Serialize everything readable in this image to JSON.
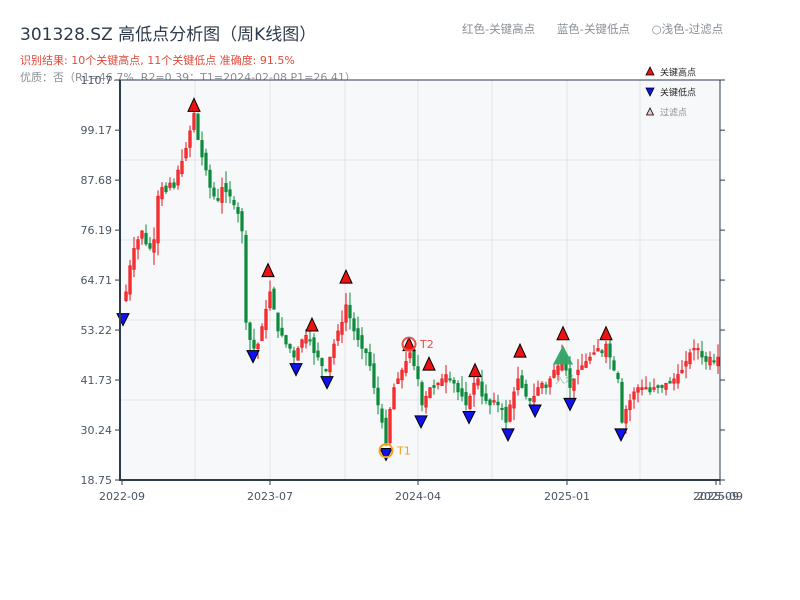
{
  "header": {
    "title": "301328.SZ 高低点分析图（周K线图）",
    "result_line": "识别结果: 10个关键高点, 11个关键低点  准确度: 91.5%",
    "quality_line": "优质：否（R1=46.7%, R2=0.39；T1=2024-02-08 P1=26.41）"
  },
  "top_legend": {
    "red": "红色-关键高点",
    "blue": "蓝色-关键低点",
    "filtered": "○浅色-过滤点"
  },
  "colors": {
    "up": "#e3141b",
    "down": "#0a8a3a",
    "high_marker": "#ee1111",
    "low_marker": "#1111ee",
    "t1": "#f5a21b",
    "t2": "#e8504a",
    "entry": "#2fa86a",
    "axis": "#2d3a4a",
    "grid": "#e1e4e8",
    "plot_bg": "#f6f8fa"
  },
  "chart_data": {
    "type": "candlestick",
    "title": "301328.SZ 高低点分析图（周K线图）",
    "xlabel": "",
    "ylabel": "",
    "ylim": [
      18.75,
      110.7
    ],
    "yticks": [
      18.75,
      30.24,
      41.73,
      53.22,
      64.71,
      76.19,
      87.68,
      99.17,
      110.7
    ],
    "ytick_labels": [
      "18.75",
      "30.24",
      "41.73",
      "53.22",
      "64.71",
      "76.19",
      "87.68",
      "99.17",
      "110.7"
    ],
    "xticks": [
      {
        "label": "2022-09",
        "x": 122
      },
      {
        "label": "2023-07",
        "x": 270
      },
      {
        "label": "2024-04",
        "x": 418
      },
      {
        "label": "2025-01",
        "x": 567
      },
      {
        "label": "2025-09",
        "x": 716
      },
      {
        "label": "2025-09",
        "x": 720
      }
    ],
    "vgrid_x": [
      195,
      270,
      345,
      418,
      492,
      567,
      640
    ],
    "hgrid_values": [
      41.73,
      87.68
    ],
    "legend": [
      {
        "label": "关键高点",
        "marker": "triangle-up",
        "color": "#ee1111"
      },
      {
        "label": "关键低点",
        "marker": "triangle-down",
        "color": "#1111ee"
      },
      {
        "label": "过滤点",
        "marker": "triangle-up-hollow",
        "color": "#f4c6c6"
      }
    ],
    "close_path": [
      [
        122,
        60
      ],
      [
        126,
        62
      ],
      [
        130,
        68
      ],
      [
        134,
        72
      ],
      [
        138,
        74
      ],
      [
        142,
        76
      ],
      [
        146,
        73
      ],
      [
        150,
        72
      ],
      [
        154,
        74
      ],
      [
        158,
        84
      ],
      [
        162,
        86
      ],
      [
        166,
        85
      ],
      [
        170,
        87
      ],
      [
        174,
        86
      ],
      [
        178,
        90
      ],
      [
        182,
        92
      ],
      [
        186,
        95
      ],
      [
        190,
        99
      ],
      [
        194,
        103
      ],
      [
        198,
        97
      ],
      [
        202,
        93
      ],
      [
        206,
        90
      ],
      [
        210,
        86
      ],
      [
        214,
        84
      ],
      [
        218,
        83
      ],
      [
        222,
        86
      ],
      [
        226,
        85
      ],
      [
        230,
        84
      ],
      [
        234,
        82
      ],
      [
        238,
        80
      ],
      [
        242,
        76
      ],
      [
        246,
        55
      ],
      [
        250,
        51
      ],
      [
        254,
        49
      ],
      [
        258,
        50
      ],
      [
        262,
        54
      ],
      [
        266,
        58
      ],
      [
        270,
        62
      ],
      [
        274,
        58
      ],
      [
        278,
        53
      ],
      [
        282,
        52
      ],
      [
        286,
        50
      ],
      [
        290,
        49
      ],
      [
        294,
        47
      ],
      [
        298,
        49
      ],
      [
        302,
        51
      ],
      [
        306,
        52
      ],
      [
        310,
        51
      ],
      [
        314,
        48
      ],
      [
        318,
        47
      ],
      [
        322,
        45
      ],
      [
        326,
        44
      ],
      [
        330,
        47
      ],
      [
        334,
        50
      ],
      [
        338,
        53
      ],
      [
        342,
        55
      ],
      [
        346,
        59
      ],
      [
        350,
        56
      ],
      [
        354,
        53
      ],
      [
        358,
        51
      ],
      [
        362,
        49
      ],
      [
        366,
        48
      ],
      [
        370,
        45
      ],
      [
        374,
        40
      ],
      [
        378,
        36
      ],
      [
        382,
        32
      ],
      [
        386,
        27
      ],
      [
        390,
        35
      ],
      [
        394,
        40
      ],
      [
        398,
        42
      ],
      [
        402,
        44
      ],
      [
        406,
        46
      ],
      [
        410,
        48
      ],
      [
        414,
        45
      ],
      [
        418,
        42
      ],
      [
        422,
        36
      ],
      [
        426,
        38
      ],
      [
        430,
        40
      ],
      [
        434,
        40
      ],
      [
        438,
        41
      ],
      [
        442,
        42
      ],
      [
        446,
        43
      ],
      [
        450,
        42
      ],
      [
        454,
        41
      ],
      [
        458,
        39
      ],
      [
        462,
        38
      ],
      [
        466,
        36
      ],
      [
        470,
        38
      ],
      [
        474,
        41
      ],
      [
        478,
        42
      ],
      [
        482,
        38
      ],
      [
        486,
        37
      ],
      [
        490,
        36
      ],
      [
        494,
        37
      ],
      [
        498,
        36
      ],
      [
        502,
        35
      ],
      [
        506,
        32
      ],
      [
        510,
        36
      ],
      [
        514,
        39
      ],
      [
        518,
        42
      ],
      [
        522,
        40
      ],
      [
        526,
        38
      ],
      [
        530,
        37
      ],
      [
        534,
        38
      ],
      [
        538,
        40
      ],
      [
        542,
        41
      ],
      [
        546,
        40
      ],
      [
        550,
        42
      ],
      [
        554,
        44
      ],
      [
        558,
        45
      ],
      [
        562,
        48
      ],
      [
        566,
        44
      ],
      [
        570,
        40
      ],
      [
        574,
        42
      ],
      [
        578,
        44
      ],
      [
        582,
        45
      ],
      [
        586,
        46
      ],
      [
        590,
        47
      ],
      [
        594,
        48
      ],
      [
        598,
        49
      ],
      [
        602,
        48
      ],
      [
        606,
        50
      ],
      [
        610,
        47
      ],
      [
        614,
        44
      ],
      [
        618,
        42
      ],
      [
        622,
        32
      ],
      [
        626,
        35
      ],
      [
        630,
        37
      ],
      [
        634,
        39
      ],
      [
        638,
        40
      ],
      [
        642,
        40
      ],
      [
        646,
        40
      ],
      [
        650,
        39
      ],
      [
        654,
        40
      ],
      [
        658,
        40
      ],
      [
        662,
        40
      ],
      [
        666,
        41
      ],
      [
        670,
        41
      ],
      [
        674,
        42
      ],
      [
        678,
        43
      ],
      [
        682,
        44
      ],
      [
        686,
        46
      ],
      [
        690,
        48
      ],
      [
        694,
        49
      ],
      [
        698,
        49
      ],
      [
        702,
        47
      ],
      [
        706,
        46
      ],
      [
        710,
        47
      ],
      [
        714,
        46
      ],
      [
        718,
        47
      ]
    ],
    "key_highs": [
      {
        "x": 194,
        "price": 103.5
      },
      {
        "x": 268,
        "price": 65.5
      },
      {
        "x": 312,
        "price": 53.0
      },
      {
        "x": 346,
        "price": 64.0
      },
      {
        "x": 409,
        "price": 48.5
      },
      {
        "x": 429,
        "price": 44.0
      },
      {
        "x": 475,
        "price": 42.5
      },
      {
        "x": 520,
        "price": 47.0
      },
      {
        "x": 563,
        "price": 51.0
      },
      {
        "x": 606,
        "price": 51.0
      }
    ],
    "key_lows": [
      {
        "x": 123,
        "price": 57.0
      },
      {
        "x": 253,
        "price": 48.5
      },
      {
        "x": 296,
        "price": 45.5
      },
      {
        "x": 327,
        "price": 42.5
      },
      {
        "x": 386,
        "price": 26.0
      },
      {
        "x": 421,
        "price": 33.5
      },
      {
        "x": 469,
        "price": 34.5
      },
      {
        "x": 508,
        "price": 30.5
      },
      {
        "x": 535,
        "price": 36.0
      },
      {
        "x": 570,
        "price": 37.5
      },
      {
        "x": 621,
        "price": 30.5
      }
    ],
    "annotations": [
      {
        "label": "T1",
        "x": 386,
        "price": 26.41,
        "color": "#f5a21b"
      },
      {
        "label": "T2",
        "x": 409,
        "price": 48.6,
        "color": "#e8504a"
      },
      {
        "label": "入场",
        "x": 563,
        "price": 46.0,
        "color": "#2fa86a"
      }
    ]
  }
}
